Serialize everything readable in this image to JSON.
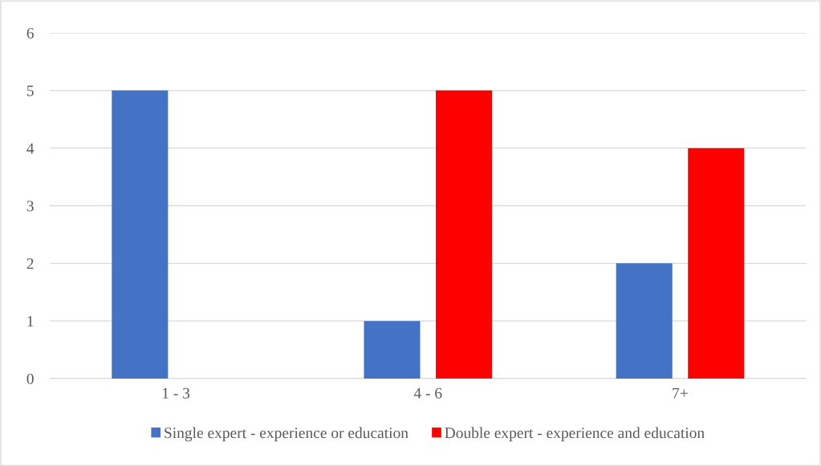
{
  "chart_data": {
    "type": "bar",
    "categories": [
      "1 - 3",
      "4 - 6",
      "7+"
    ],
    "series": [
      {
        "name": "Single expert - experience or education",
        "color": "#4472c4",
        "values": [
          5,
          1,
          2
        ]
      },
      {
        "name": "Double expert - experience and education",
        "color": "#ff0000",
        "values": [
          0,
          5,
          4
        ]
      }
    ],
    "ylim": [
      0,
      6
    ],
    "yticks": [
      0,
      1,
      2,
      3,
      4,
      5,
      6
    ],
    "grid": "y",
    "legend": "bottom"
  }
}
